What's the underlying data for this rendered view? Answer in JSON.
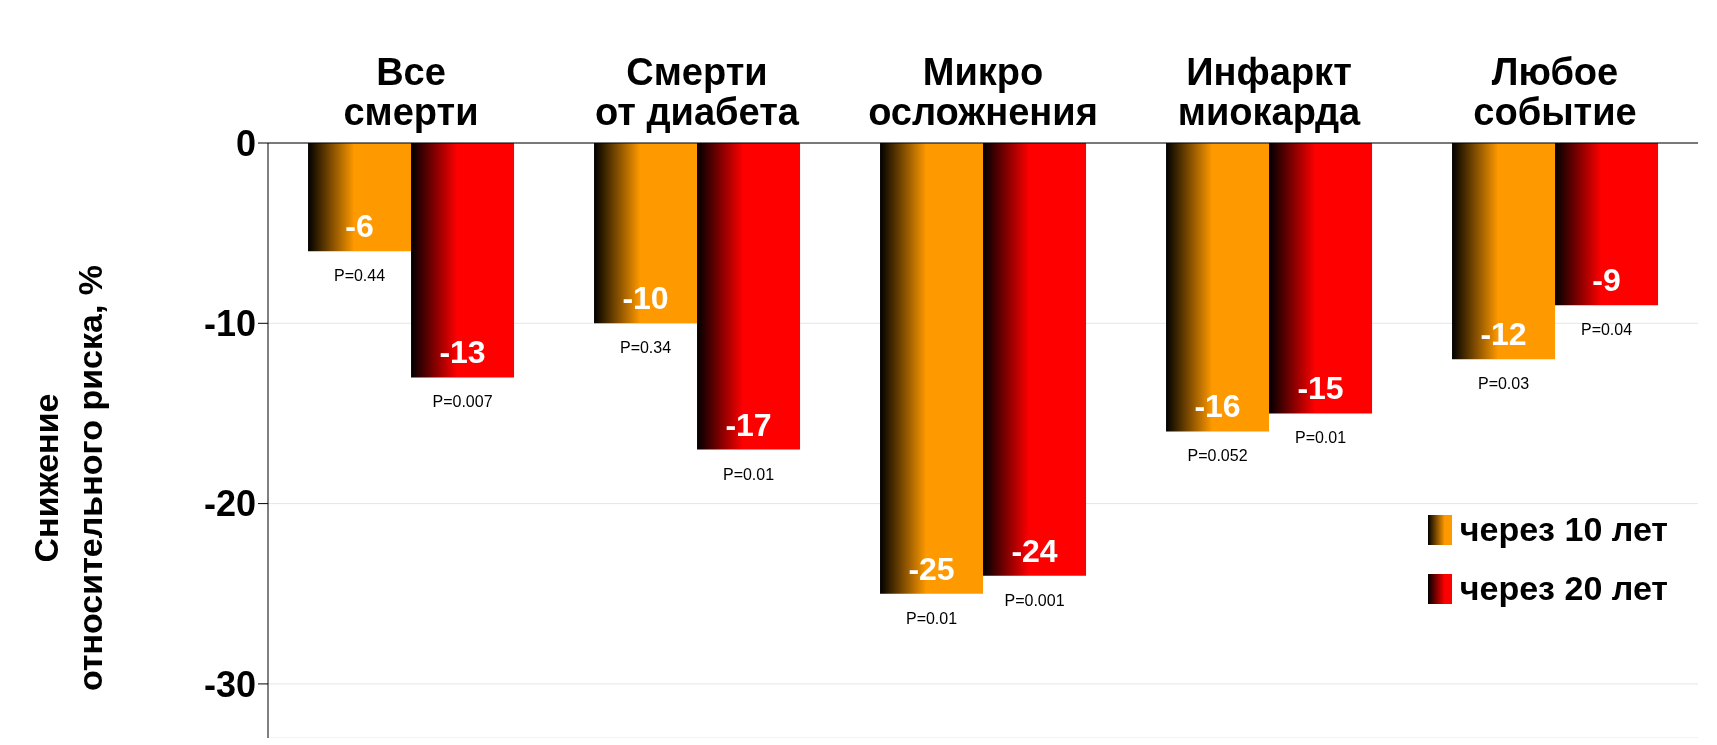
{
  "chart_data": {
    "type": "bar",
    "ylabel": "Снижение относительного риска, %",
    "categories": [
      "Все\nсмерти",
      "Смерти\nот диабета",
      "Микро\nосложнения",
      "Инфаркт\nмиокарда",
      "Любое\nсобытие"
    ],
    "series": [
      {
        "name": "через 10 лет",
        "color": "#ff9900",
        "values": [
          -6,
          -10,
          -25,
          -16,
          -12
        ]
      },
      {
        "name": "через 20 лет",
        "color": "#ff0000",
        "values": [
          -13,
          -17,
          -24,
          -15,
          -9
        ]
      }
    ],
    "ylim": [
      -33,
      0
    ],
    "yticks": [
      0,
      -10,
      -20,
      -30
    ],
    "grid": "y",
    "legend": "bottom right",
    "data_labels": true,
    "annotations": [
      {
        "text": "P=0.44",
        "x": "Все\nсмерти",
        "y": -6
      },
      {
        "text": "P=0.007",
        "x": "Все\nсмерти",
        "y": -13
      },
      {
        "text": "P=0.34",
        "x": "Смерти\nот диабета",
        "y": -10
      },
      {
        "text": "P=0.01",
        "x": "Смерти\nот диабета",
        "y": -17
      },
      {
        "text": "P=0.01",
        "x": "Микро\nосложнения",
        "y": -25
      },
      {
        "text": "P=0.001",
        "x": "Микро\nосложнения",
        "y": -24
      },
      {
        "text": "P=0.052",
        "x": "Инфаркт\nмиокарда",
        "y": -16
      },
      {
        "text": "P=0.01",
        "x": "Инфаркт\nмиокарда",
        "y": -15
      },
      {
        "text": "P=0.03",
        "x": "Любое\nсобытие",
        "y": -12
      },
      {
        "text": "P=0.04",
        "x": "Любое\nсобытие",
        "y": -9
      }
    ]
  }
}
